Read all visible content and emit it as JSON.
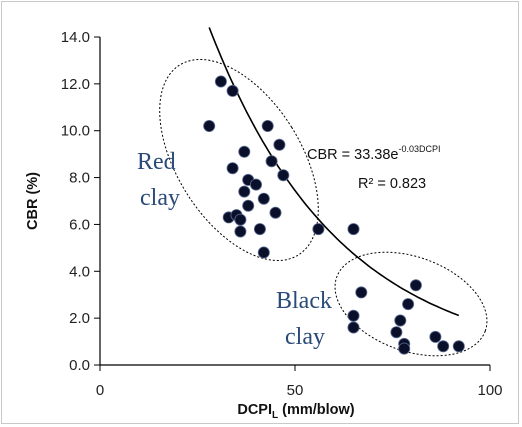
{
  "chart_data": {
    "type": "scatter",
    "xlabel": "DCPI",
    "xlabel_sub": "L",
    "xlabel_units": "(mm/blow)",
    "ylabel": "CBR (%)",
    "xlim": [
      0,
      100
    ],
    "ylim": [
      0,
      14
    ],
    "x_ticks": [
      "0",
      "50",
      "100"
    ],
    "y_ticks": [
      "0.0",
      "2.0",
      "4.0",
      "6.0",
      "8.0",
      "10.0",
      "12.0",
      "14.0"
    ],
    "grid": false,
    "marker_color": "#0a0f2a",
    "trendline_color": "#000000",
    "trendline": {
      "a": 33.38,
      "b": -0.03,
      "x_range": [
        28,
        92
      ],
      "equation_prefix": "CBR = 33.38e",
      "equation_exponent": "-0.03DCPI",
      "r2_text": "R² = 0.823"
    },
    "regions": [
      {
        "label_line1": "Red",
        "label_line2": "clay"
      },
      {
        "label_line1": "Black",
        "label_line2": "clay"
      }
    ],
    "points": [
      {
        "x": 28,
        "y": 10.2
      },
      {
        "x": 31,
        "y": 12.1
      },
      {
        "x": 33,
        "y": 6.3
      },
      {
        "x": 34,
        "y": 8.4
      },
      {
        "x": 34,
        "y": 11.7
      },
      {
        "x": 35,
        "y": 6.4
      },
      {
        "x": 36,
        "y": 6.2
      },
      {
        "x": 36,
        "y": 5.7
      },
      {
        "x": 37,
        "y": 9.1
      },
      {
        "x": 37,
        "y": 7.4
      },
      {
        "x": 38,
        "y": 7.9
      },
      {
        "x": 38,
        "y": 6.8
      },
      {
        "x": 40,
        "y": 7.7
      },
      {
        "x": 41,
        "y": 5.8
      },
      {
        "x": 42,
        "y": 4.8
      },
      {
        "x": 42,
        "y": 7.1
      },
      {
        "x": 43,
        "y": 10.2
      },
      {
        "x": 44,
        "y": 8.7
      },
      {
        "x": 45,
        "y": 6.5
      },
      {
        "x": 46,
        "y": 9.4
      },
      {
        "x": 47,
        "y": 8.1
      },
      {
        "x": 56,
        "y": 5.8
      },
      {
        "x": 65,
        "y": 5.8
      },
      {
        "x": 65,
        "y": 1.6
      },
      {
        "x": 65,
        "y": 2.1
      },
      {
        "x": 67,
        "y": 3.1
      },
      {
        "x": 76,
        "y": 1.4
      },
      {
        "x": 77,
        "y": 1.9
      },
      {
        "x": 78,
        "y": 0.9
      },
      {
        "x": 78,
        "y": 0.7
      },
      {
        "x": 79,
        "y": 2.6
      },
      {
        "x": 81,
        "y": 3.4
      },
      {
        "x": 86,
        "y": 1.2
      },
      {
        "x": 88,
        "y": 0.8
      },
      {
        "x": 92,
        "y": 0.8
      }
    ]
  }
}
